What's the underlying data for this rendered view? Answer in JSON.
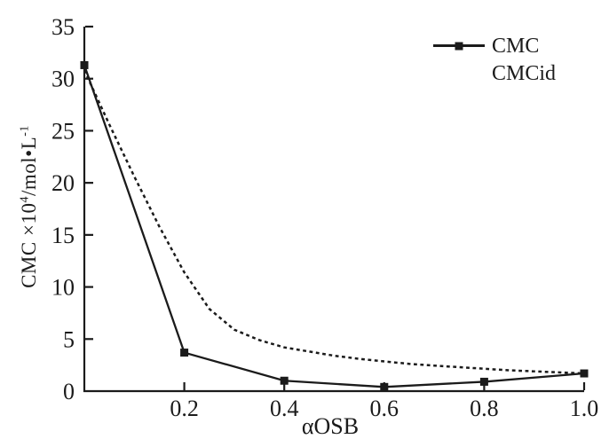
{
  "chart_data": {
    "type": "line",
    "title": "",
    "xlabel": "αOSB",
    "ylabel": "CMC ×10⁴/mol•L⁻¹",
    "ylabel_parts": {
      "pre": "CMC ×10",
      "sup1": "4",
      "mid": "/mol•L",
      "sup2": "-1"
    },
    "xlim": [
      0,
      1.0
    ],
    "ylim": [
      0,
      35
    ],
    "grid": false,
    "legend_position": "top-right",
    "axis_color": "#1b1b1b",
    "line_color": "#1b1b1b",
    "background": "#ffffff",
    "x_ticks": [
      {
        "v": 0.2,
        "label": "0.2"
      },
      {
        "v": 0.4,
        "label": "0.4"
      },
      {
        "v": 0.6,
        "label": "0.6"
      },
      {
        "v": 0.8,
        "label": "0.8"
      },
      {
        "v": 1.0,
        "label": "1.0"
      }
    ],
    "y_ticks": [
      {
        "v": 0,
        "label": "0"
      },
      {
        "v": 5,
        "label": "5"
      },
      {
        "v": 10,
        "label": "10"
      },
      {
        "v": 15,
        "label": "15"
      },
      {
        "v": 20,
        "label": "20"
      },
      {
        "v": 25,
        "label": "25"
      },
      {
        "v": 30,
        "label": "30"
      },
      {
        "v": 35,
        "label": "35"
      }
    ],
    "series": [
      {
        "name": "CMC",
        "line_style": "solid",
        "marker": "square",
        "x": [
          0,
          0.2,
          0.4,
          0.6,
          0.8,
          1.0
        ],
        "y": [
          31.3,
          3.7,
          1.0,
          0.4,
          0.9,
          1.7
        ]
      },
      {
        "name": "CMCid",
        "line_style": "dashed",
        "marker": "none",
        "x": [
          0,
          0.05,
          0.1,
          0.15,
          0.2,
          0.25,
          0.3,
          0.35,
          0.4,
          0.45,
          0.5,
          0.55,
          0.6,
          0.65,
          0.7,
          0.75,
          0.8,
          0.85,
          0.9,
          0.95,
          1.0
        ],
        "y": [
          30.8,
          25.6,
          20.6,
          15.8,
          11.4,
          7.9,
          5.9,
          4.9,
          4.2,
          3.8,
          3.4,
          3.1,
          2.85,
          2.62,
          2.45,
          2.3,
          2.15,
          2.0,
          1.9,
          1.8,
          1.7
        ]
      }
    ]
  }
}
